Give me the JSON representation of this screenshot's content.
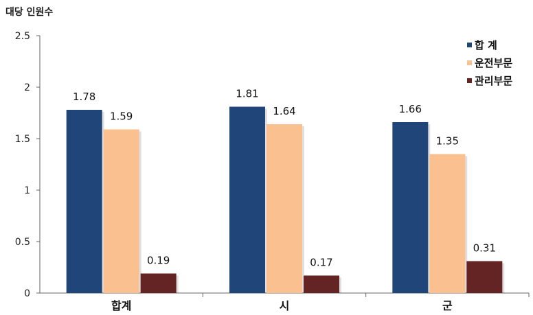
{
  "chart_data": {
    "type": "bar",
    "ylabel": "대당 인원수",
    "categories": [
      "합계",
      "시",
      "군"
    ],
    "series": [
      {
        "name": "합 계",
        "color": "#1f4579",
        "values": [
          1.78,
          1.81,
          1.66
        ],
        "labels": [
          "1.78",
          "1.81",
          "1.66"
        ]
      },
      {
        "name": "운전부문",
        "color": "#fac08f",
        "values": [
          1.59,
          1.64,
          1.35
        ],
        "labels": [
          "1.59",
          "1.64",
          "1.35"
        ]
      },
      {
        "name": "관리부문",
        "color": "#632423",
        "values": [
          0.19,
          0.17,
          0.31
        ],
        "labels": [
          "0.19",
          "0.17",
          "0.31"
        ]
      }
    ],
    "yticks": [
      "0",
      "0.5",
      "1",
      "1.5",
      "2",
      "2.5"
    ],
    "ylim": [
      0,
      2.5
    ],
    "grid": false,
    "legend": "top-right"
  }
}
